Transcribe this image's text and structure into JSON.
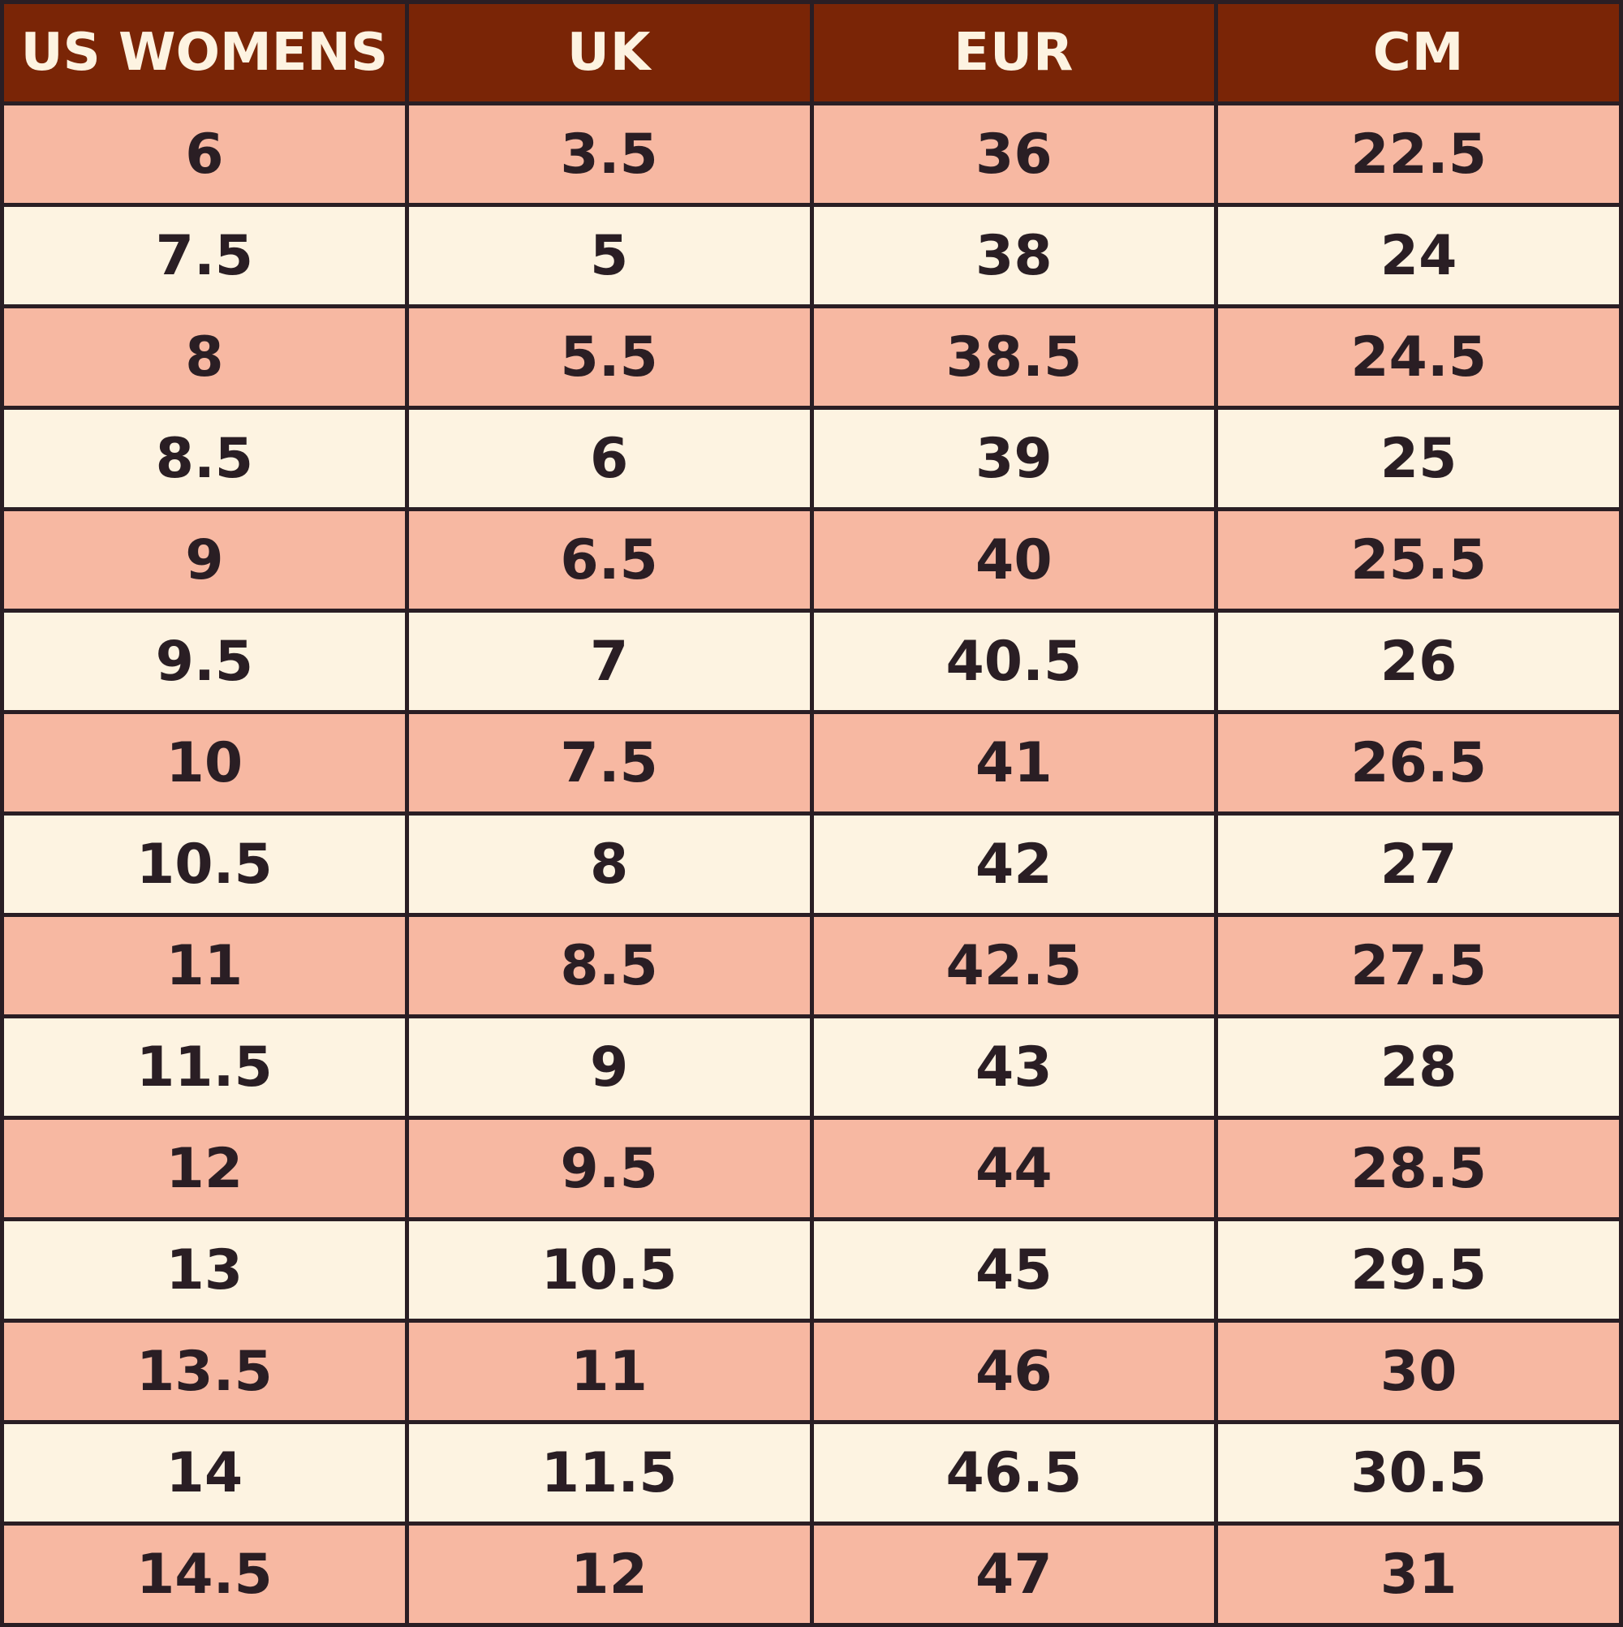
{
  "colors": {
    "header_bg": "#7a2506",
    "header_text": "#fdf3e1",
    "row_pink": "#f7b8a2",
    "row_cream": "#fdf3e1",
    "cell_text": "#2a1e24",
    "border": "#2a1e24"
  },
  "table": {
    "headers": [
      "US WOMENS",
      "UK",
      "EUR",
      "CM"
    ],
    "rows": [
      [
        "6",
        "3.5",
        "36",
        "22.5"
      ],
      [
        "7.5",
        "5",
        "38",
        "24"
      ],
      [
        "8",
        "5.5",
        "38.5",
        "24.5"
      ],
      [
        "8.5",
        "6",
        "39",
        "25"
      ],
      [
        "9",
        "6.5",
        "40",
        "25.5"
      ],
      [
        "9.5",
        "7",
        "40.5",
        "26"
      ],
      [
        "10",
        "7.5",
        "41",
        "26.5"
      ],
      [
        "10.5",
        "8",
        "42",
        "27"
      ],
      [
        "11",
        "8.5",
        "42.5",
        "27.5"
      ],
      [
        "11.5",
        "9",
        "43",
        "28"
      ],
      [
        "12",
        "9.5",
        "44",
        "28.5"
      ],
      [
        "13",
        "10.5",
        "45",
        "29.5"
      ],
      [
        "13.5",
        "11",
        "46",
        "30"
      ],
      [
        "14",
        "11.5",
        "46.5",
        "30.5"
      ],
      [
        "14.5",
        "12",
        "47",
        "31"
      ]
    ]
  }
}
